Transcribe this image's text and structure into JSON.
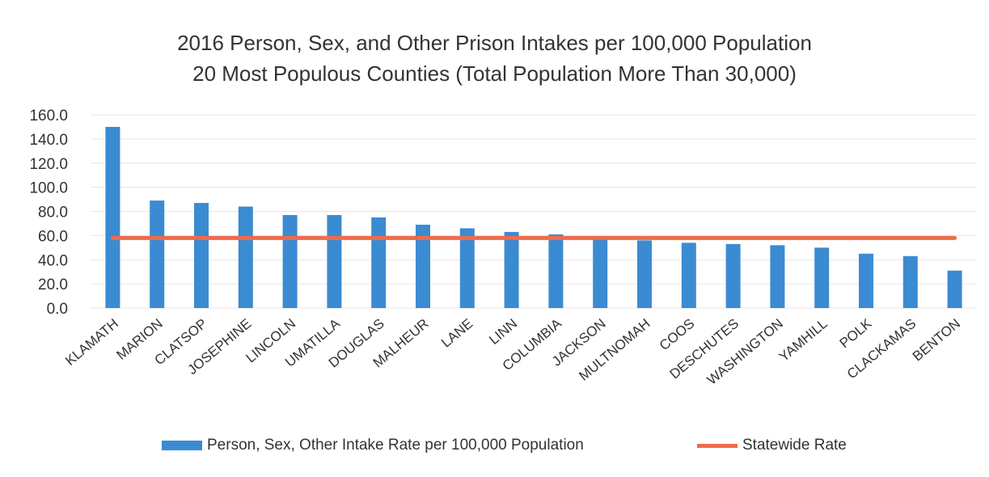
{
  "chart_data": {
    "type": "bar",
    "title": "2016 Person, Sex, and Other Prison Intakes per 100,000 Population",
    "subtitle": "20 Most Populous Counties (Total Population More Than 30,000)",
    "xlabel": "",
    "ylabel": "",
    "ylim": [
      0,
      160
    ],
    "yticks": [
      "0.0",
      "20.0",
      "40.0",
      "60.0",
      "80.0",
      "100.0",
      "120.0",
      "140.0",
      "160.0"
    ],
    "grid": true,
    "legend_position": "bottom",
    "categories": [
      "KLAMATH",
      "MARION",
      "CLATSOP",
      "JOSEPHINE",
      "LINCOLN",
      "UMATILLA",
      "DOUGLAS",
      "MALHEUR",
      "LANE",
      "LINN",
      "COLUMBIA",
      "JACKSON",
      "MULTNOMAH",
      "COOS",
      "DESCHUTES",
      "WASHINGTON",
      "YAMHILL",
      "POLK",
      "CLACKAMAS",
      "BENTON"
    ],
    "series": [
      {
        "name": "Person, Sex, Other Intake Rate per 100,000 Population",
        "type": "bar",
        "color": "#3b8bd2",
        "values": [
          150,
          89,
          87,
          84,
          77,
          77,
          75,
          69,
          66,
          63,
          61,
          58,
          56,
          54,
          53,
          52,
          50,
          45,
          43,
          31
        ]
      },
      {
        "name": "Statewide Rate",
        "type": "line",
        "color": "#ef6b4a",
        "values": [
          58,
          58,
          58,
          58,
          58,
          58,
          58,
          58,
          58,
          58,
          58,
          58,
          58,
          58,
          58,
          58,
          58,
          58,
          58,
          58
        ]
      }
    ]
  }
}
